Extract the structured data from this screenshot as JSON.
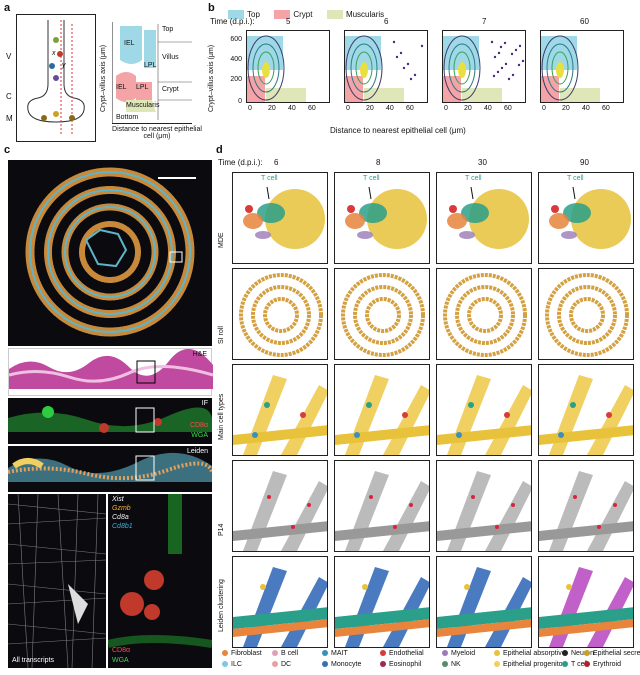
{
  "panel_a": {
    "label": "a",
    "axis_y": "Crypt–villus axis (μm)",
    "axis_x": "Distance to nearest epithelial cell (μm)",
    "zones": [
      "V",
      "C",
      "M"
    ],
    "regions": {
      "top": "Top",
      "villus": "Villus",
      "crypt": "Crypt",
      "muscularis": "Muscularis",
      "bottom": "Bottom",
      "iel_top": "IEL",
      "lpl_top": "LPL",
      "iel_bottom": "IEL",
      "lpl_bottom": "LPL"
    },
    "letter_x": "x",
    "letter_y": "y"
  },
  "panel_b": {
    "label": "b",
    "legend": [
      {
        "name": "Top",
        "color": "#9fd8e6"
      },
      {
        "name": "Crypt",
        "color": "#f4a3a6"
      },
      {
        "name": "Muscularis",
        "color": "#dfe6b8"
      }
    ],
    "time_label": "Time (d.p.i.):",
    "times": [
      "5",
      "6",
      "7",
      "60"
    ],
    "ylabel": "Crypt–villus axis (μm)",
    "xlabel": "Distance to nearest epithelial cell (μm)",
    "yticks": [
      "600",
      "400",
      "200",
      "0"
    ],
    "xticks": [
      "0",
      "20",
      "40",
      "60"
    ]
  },
  "panel_c": {
    "label": "c",
    "he": "H&E",
    "if": "IF",
    "if_cd8": "CD8α",
    "if_wga": "WGA",
    "leiden": "Leiden",
    "transcripts": [
      "Xist",
      "Gzmb",
      "Cd8a",
      "Cd8b1"
    ],
    "all_transcripts": "All transcripts",
    "bottom_cd8": "CD8α",
    "bottom_wga": "WGA"
  },
  "panel_d": {
    "label": "d",
    "time_label": "Time (d.p.i.):",
    "times": [
      "6",
      "8",
      "30",
      "90"
    ],
    "rows": [
      "MDE",
      "SI roll",
      "Main cell types",
      "P14",
      "Leiden clustering"
    ],
    "tcell_label": "T cell",
    "legend": [
      {
        "name": "Fibroblast",
        "color": "#e8843c"
      },
      {
        "name": "B cell",
        "color": "#e0a0b8"
      },
      {
        "name": "MAIT",
        "color": "#3a8fbf"
      },
      {
        "name": "Endothelial",
        "color": "#d93a3a"
      },
      {
        "name": "Myeloid",
        "color": "#9a7bb8"
      },
      {
        "name": "Epithelial absorptive",
        "color": "#e8c23a"
      },
      {
        "name": "Neuron",
        "color": "#222222"
      },
      {
        "name": "Epithelial secretory",
        "color": "#c8a02a"
      },
      {
        "name": "ILC",
        "color": "#7ec8e0"
      },
      {
        "name": "DC",
        "color": "#e8a0a0"
      },
      {
        "name": "Monocyte",
        "color": "#3a6fb0"
      },
      {
        "name": "Eosinophil",
        "color": "#a02a4a"
      },
      {
        "name": "NK",
        "color": "#5a8a6a"
      },
      {
        "name": "Epithelial progenitor",
        "color": "#f0d060"
      },
      {
        "name": "T cell",
        "color": "#2aa08a"
      },
      {
        "name": "Erythroid",
        "color": "#b0202a"
      }
    ]
  }
}
